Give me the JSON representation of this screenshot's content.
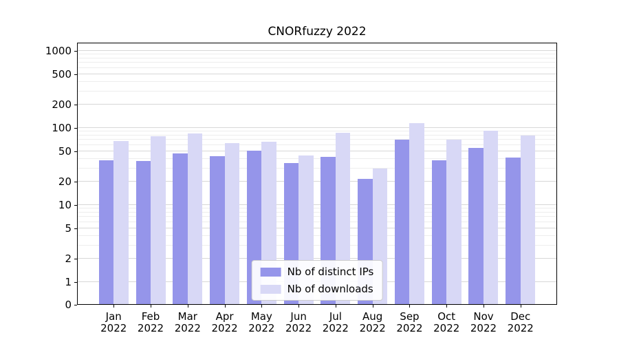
{
  "chart_data": {
    "type": "bar",
    "title": "CNORfuzzy 2022",
    "xlabel": "",
    "ylabel": "",
    "yscale": "symlog",
    "grid": true,
    "ylim": [
      0,
      1280
    ],
    "yticks": [
      0,
      1,
      2,
      5,
      10,
      20,
      50,
      100,
      200,
      500,
      1000
    ],
    "categories": [
      "Jan 2022",
      "Feb 2022",
      "Mar 2022",
      "Apr 2022",
      "May 2022",
      "Jun 2022",
      "Jul 2022",
      "Aug 2022",
      "Sep 2022",
      "Oct 2022",
      "Nov 2022",
      "Dec 2022"
    ],
    "series": [
      {
        "name": "Nb of distinct IPs",
        "color": "#9595ea",
        "values": [
          38,
          37,
          47,
          43,
          51,
          35,
          42,
          22,
          70,
          38,
          55,
          41
        ]
      },
      {
        "name": "Nb of downloads",
        "color": "#d8d8f6",
        "values": [
          68,
          78,
          85,
          64,
          66,
          44,
          86,
          30,
          115,
          70,
          92,
          80
        ]
      }
    ],
    "legend_position": "lower center"
  }
}
